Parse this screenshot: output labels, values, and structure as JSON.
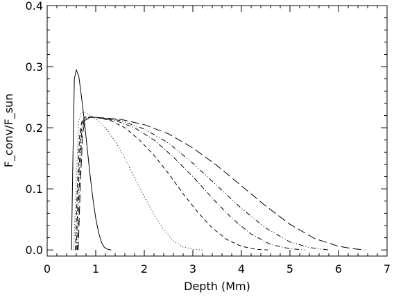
{
  "chart_data": {
    "type": "line",
    "title": "",
    "xlabel": "Depth (Mm)",
    "ylabel": "F_conv/F_sun",
    "xlim": [
      0,
      7
    ],
    "ylim": [
      -0.01,
      0.4
    ],
    "grid": false,
    "legend": "none",
    "xticks": [
      0,
      1,
      2,
      3,
      4,
      5,
      6,
      7
    ],
    "xtick_labels": [
      "0",
      "1",
      "2",
      "3",
      "4",
      "5",
      "6",
      "7"
    ],
    "yticks": [
      0.0,
      0.1,
      0.2,
      0.3,
      0.4
    ],
    "ytick_labels": [
      "0.0",
      "0.1",
      "0.2",
      "0.3",
      "0.4"
    ],
    "series": [
      {
        "style": "solid",
        "x": [
          0.5,
          0.53,
          0.56,
          0.6,
          0.65,
          0.7,
          0.76,
          0.82,
          0.88,
          0.94,
          1.0,
          1.06,
          1.12,
          1.18,
          1.25,
          1.32
        ],
        "y": [
          0.0,
          0.15,
          0.28,
          0.295,
          0.285,
          0.255,
          0.215,
          0.17,
          0.125,
          0.085,
          0.052,
          0.028,
          0.012,
          0.004,
          0.001,
          0.0
        ]
      },
      {
        "style": "dotted",
        "x": [
          0.55,
          0.6,
          0.65,
          0.7,
          0.75,
          0.85,
          1.0,
          1.2,
          1.4,
          1.6,
          1.8,
          2.0,
          2.2,
          2.4,
          2.6,
          2.8,
          3.0,
          3.2
        ],
        "y": [
          0.0,
          0.12,
          0.21,
          0.225,
          0.226,
          0.222,
          0.215,
          0.2,
          0.178,
          0.15,
          0.118,
          0.087,
          0.058,
          0.033,
          0.015,
          0.005,
          0.001,
          0.0
        ]
      },
      {
        "style": "dashed",
        "x": [
          0.58,
          0.62,
          0.67,
          0.72,
          0.8,
          0.9,
          1.0,
          1.3,
          1.6,
          1.9,
          2.2,
          2.5,
          2.8,
          3.1,
          3.4,
          3.7,
          4.0,
          4.3,
          4.55
        ],
        "y": [
          0.0,
          0.1,
          0.19,
          0.213,
          0.218,
          0.218,
          0.217,
          0.212,
          0.2,
          0.18,
          0.155,
          0.125,
          0.092,
          0.062,
          0.036,
          0.017,
          0.006,
          0.001,
          0.0
        ]
      },
      {
        "style": "dash-dot",
        "x": [
          0.6,
          0.64,
          0.69,
          0.74,
          0.82,
          0.92,
          1.0,
          1.4,
          1.8,
          2.2,
          2.6,
          3.0,
          3.4,
          3.8,
          4.2,
          4.6,
          5.0,
          5.3
        ],
        "y": [
          0.0,
          0.1,
          0.19,
          0.212,
          0.217,
          0.217,
          0.217,
          0.212,
          0.2,
          0.18,
          0.152,
          0.12,
          0.085,
          0.052,
          0.026,
          0.009,
          0.002,
          0.0
        ]
      },
      {
        "style": "dash-dot-dot",
        "x": [
          0.62,
          0.66,
          0.71,
          0.76,
          0.85,
          0.95,
          1.0,
          1.5,
          2.0,
          2.5,
          3.0,
          3.5,
          4.0,
          4.5,
          5.0,
          5.4,
          5.8
        ],
        "y": [
          0.0,
          0.1,
          0.19,
          0.212,
          0.217,
          0.217,
          0.217,
          0.212,
          0.198,
          0.175,
          0.142,
          0.105,
          0.068,
          0.036,
          0.013,
          0.004,
          0.0
        ]
      },
      {
        "style": "long-dash",
        "x": [
          0.64,
          0.68,
          0.73,
          0.78,
          0.88,
          1.0,
          1.5,
          2.0,
          2.5,
          3.0,
          3.5,
          4.0,
          4.5,
          5.0,
          5.5,
          6.0,
          6.3,
          6.55
        ],
        "y": [
          0.0,
          0.1,
          0.19,
          0.212,
          0.217,
          0.217,
          0.214,
          0.205,
          0.19,
          0.167,
          0.138,
          0.105,
          0.072,
          0.042,
          0.019,
          0.006,
          0.002,
          0.0
        ]
      }
    ]
  }
}
